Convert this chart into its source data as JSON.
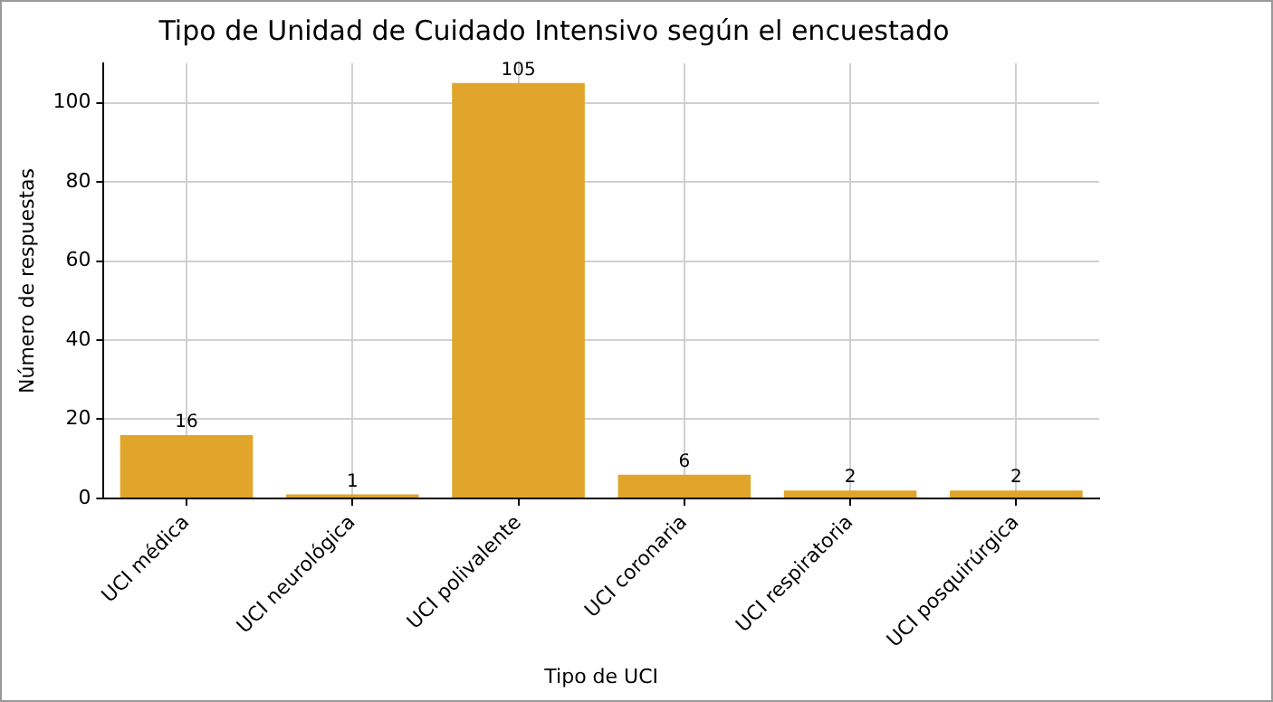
{
  "chart_data": {
    "type": "bar",
    "title": "Tipo de Unidad de Cuidado Intensivo según el encuestado",
    "xlabel": "Tipo de UCI",
    "ylabel": "Número de respuestas",
    "categories": [
      "UCI médica",
      "UCI neurológica",
      "UCI polivalente",
      "UCI coronaria",
      "UCI respiratoria",
      "UCI posquirúrgica"
    ],
    "values": [
      16,
      1,
      105,
      6,
      2,
      2
    ],
    "color": "#e0a52a",
    "ylim": [
      0,
      110
    ],
    "yticks": [
      0,
      20,
      40,
      60,
      80,
      100
    ],
    "grid": true,
    "legend": false,
    "data_labels": true
  }
}
